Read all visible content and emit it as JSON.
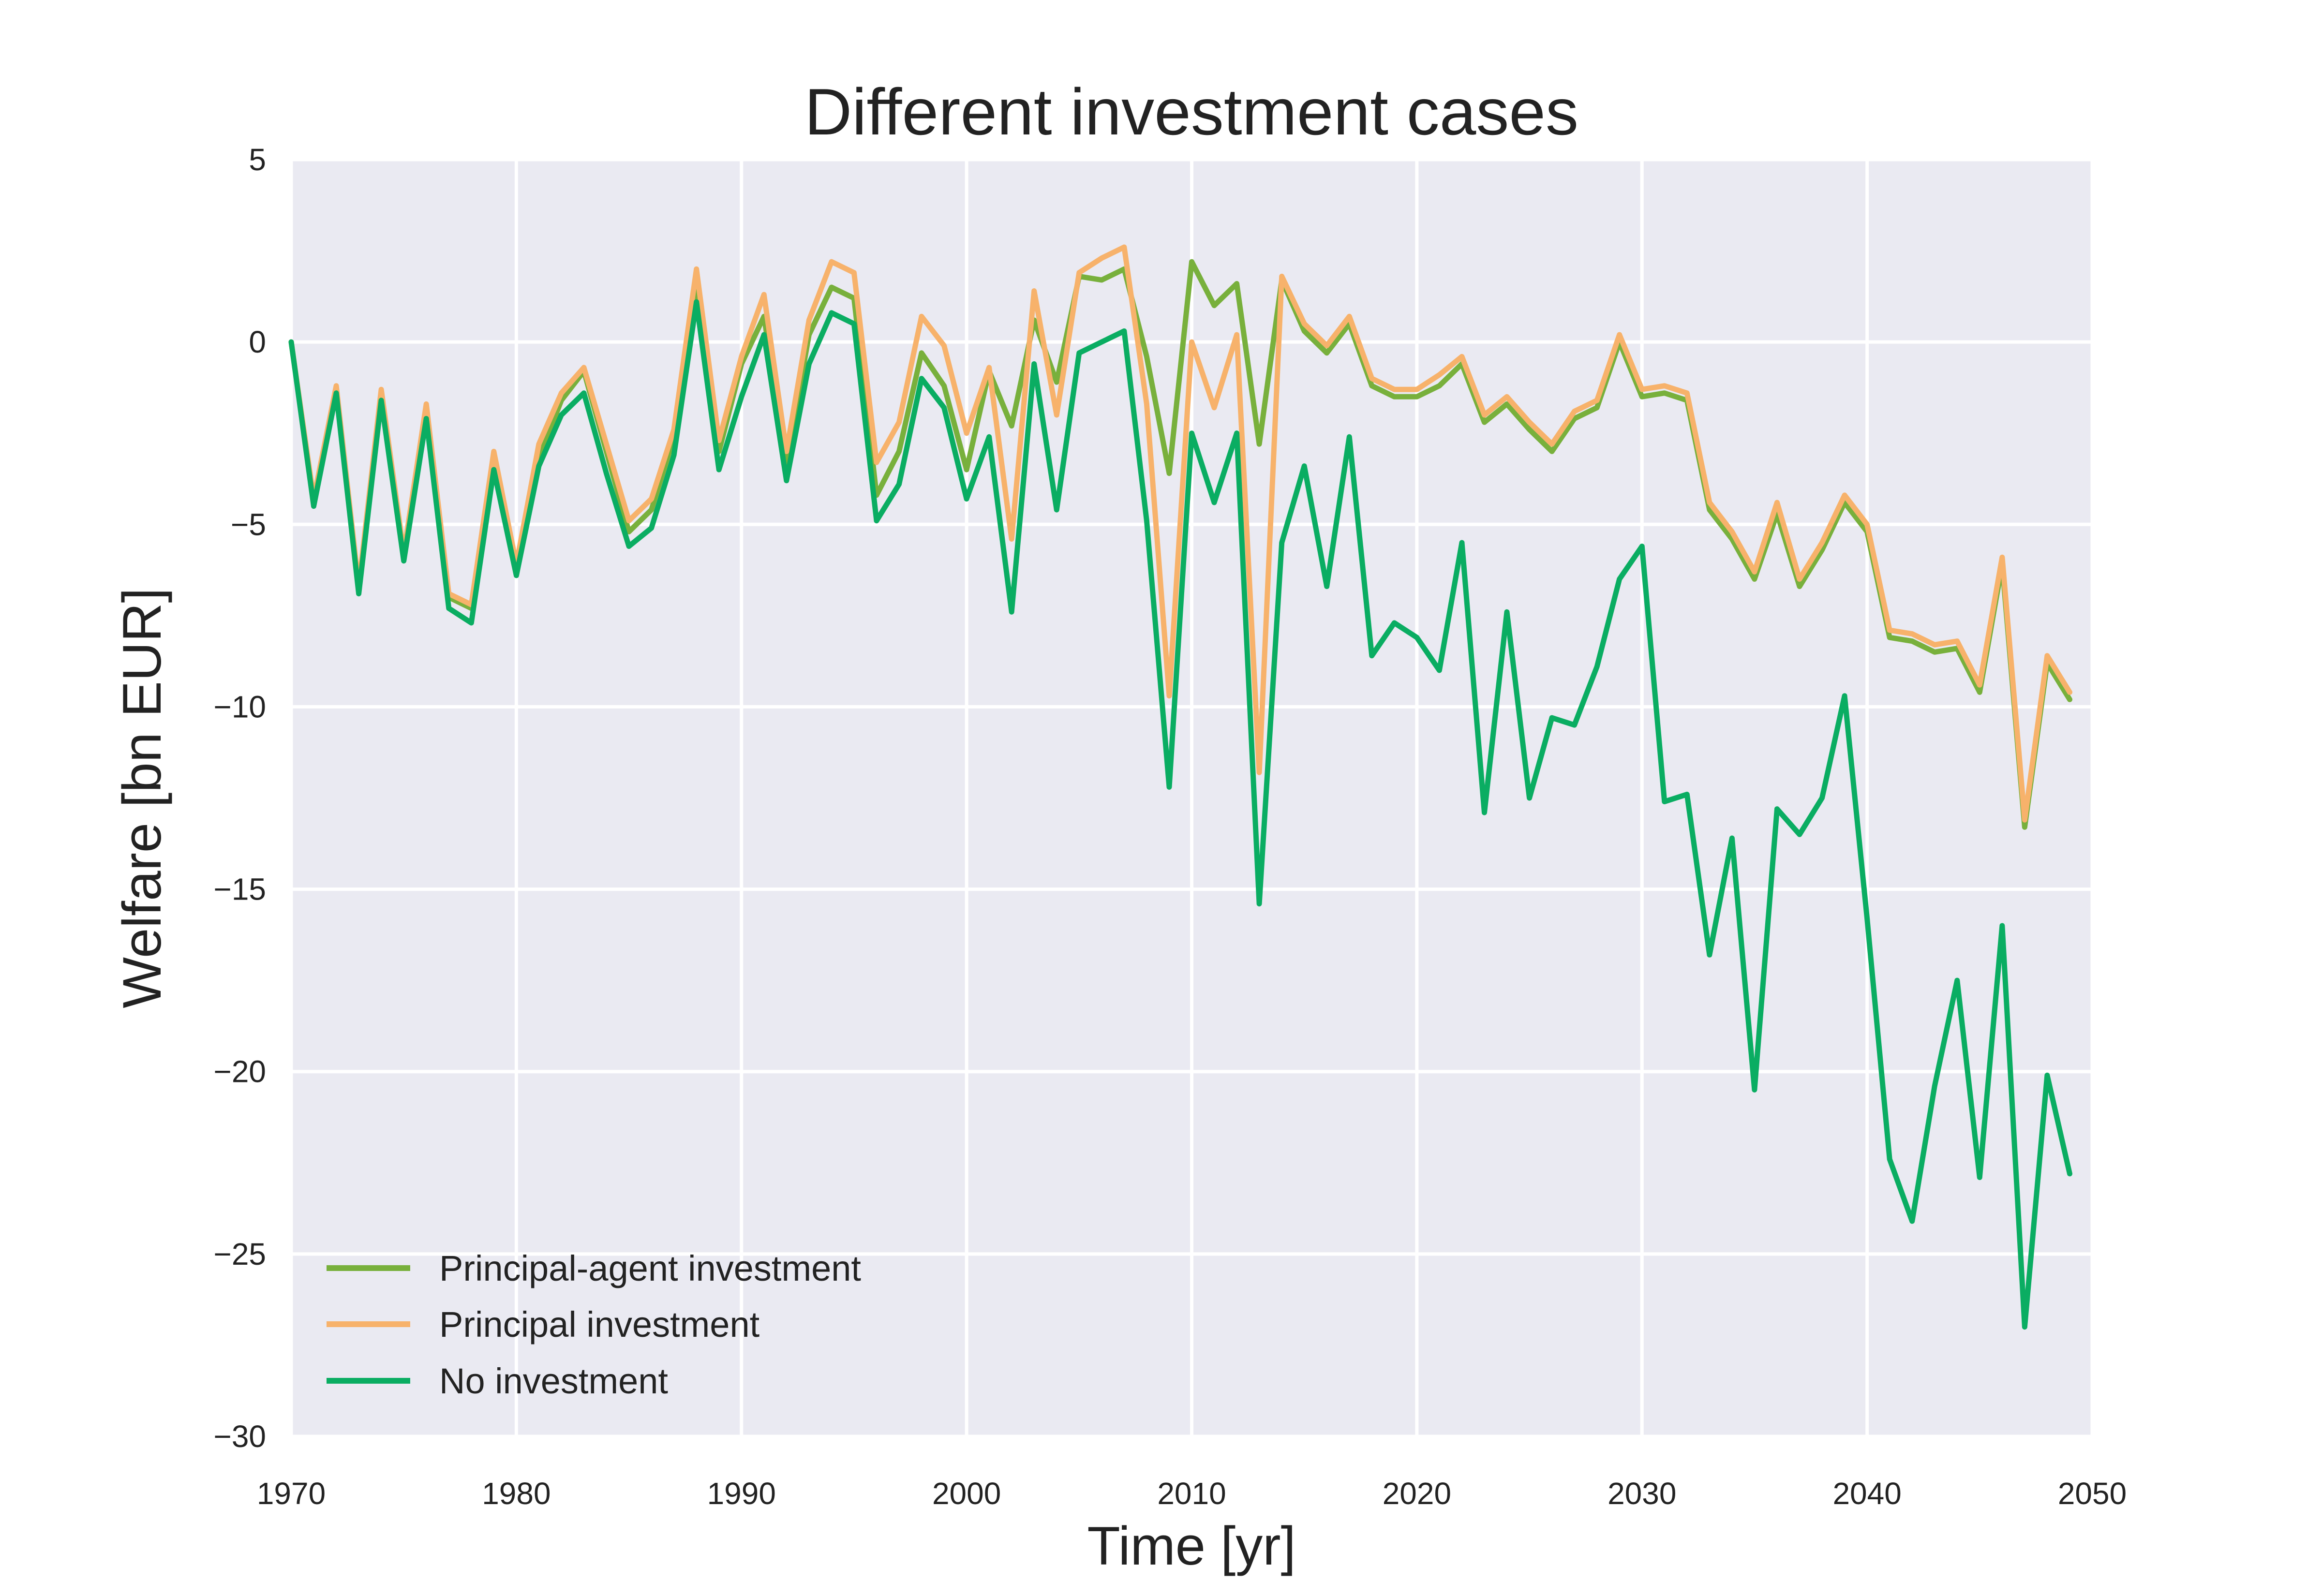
{
  "chart_data": {
    "type": "line",
    "title": "Different investment cases",
    "xlabel": "Time [yr]",
    "ylabel": "Welfare [bn EUR]",
    "xlim": [
      1970,
      2050
    ],
    "ylim": [
      -30,
      5
    ],
    "xticks": [
      1970,
      1980,
      1990,
      2000,
      2010,
      2020,
      2030,
      2040,
      2050
    ],
    "yticks": [
      5,
      0,
      -5,
      -10,
      -15,
      -20,
      -25,
      -30
    ],
    "xtick_labels": [
      "1970",
      "1980",
      "1990",
      "2000",
      "2010",
      "2020",
      "2030",
      "2040",
      "2050"
    ],
    "ytick_labels": [
      "5",
      "0",
      "−5",
      "−10",
      "−15",
      "−20",
      "−25",
      "−30"
    ],
    "grid": true,
    "legend_position": "lower-left",
    "x": [
      1970,
      1971,
      1972,
      1973,
      1974,
      1975,
      1976,
      1977,
      1978,
      1979,
      1980,
      1981,
      1982,
      1983,
      1984,
      1985,
      1986,
      1987,
      1988,
      1989,
      1990,
      1991,
      1992,
      1993,
      1994,
      1995,
      1996,
      1997,
      1998,
      1999,
      2000,
      2001,
      2002,
      2003,
      2004,
      2005,
      2006,
      2007,
      2008,
      2009,
      2010,
      2011,
      2012,
      2013,
      2014,
      2015,
      2016,
      2017,
      2018,
      2019,
      2020,
      2021,
      2022,
      2023,
      2024,
      2025,
      2026,
      2027,
      2028,
      2029,
      2030,
      2031,
      2032,
      2033,
      2034,
      2035,
      2036,
      2037,
      2038,
      2039,
      2040,
      2041,
      2042,
      2043,
      2044,
      2045,
      2046,
      2047,
      2048,
      2049
    ],
    "series": [
      {
        "name": "Principal-agent investment",
        "color": "#78b03c",
        "values": [
          0,
          -4.4,
          -1.3,
          -6.8,
          -1.5,
          -5.9,
          -2.0,
          -7.0,
          -7.3,
          -3.3,
          -6.2,
          -3.2,
          -1.6,
          -0.8,
          -3.0,
          -5.2,
          -4.6,
          -2.6,
          1.6,
          -3.0,
          -0.6,
          0.7,
          -3.3,
          0.2,
          1.5,
          1.2,
          -4.2,
          -3.0,
          -0.3,
          -1.2,
          -3.5,
          -0.8,
          -2.3,
          0.6,
          -1.1,
          1.8,
          1.7,
          2.0,
          -0.4,
          -3.6,
          2.2,
          1.0,
          1.6,
          -2.8,
          1.7,
          0.3,
          -0.3,
          0.5,
          -1.2,
          -1.5,
          -1.5,
          -1.2,
          -0.6,
          -2.2,
          -1.7,
          -2.4,
          -3.0,
          -2.1,
          -1.8,
          0.0,
          -1.5,
          -1.4,
          -1.6,
          -4.6,
          -5.4,
          -6.5,
          -4.7,
          -6.7,
          -5.7,
          -4.4,
          -5.2,
          -8.1,
          -8.2,
          -8.5,
          -8.4,
          -9.6,
          -6.1,
          -13.3,
          -8.8,
          -9.8
        ]
      },
      {
        "name": "Principal investment",
        "color": "#f7b26b",
        "values": [
          0,
          -4.3,
          -1.2,
          -6.7,
          -1.3,
          -5.8,
          -1.7,
          -6.9,
          -7.2,
          -3.0,
          -6.1,
          -2.8,
          -1.4,
          -0.7,
          -2.8,
          -4.9,
          -4.3,
          -2.4,
          2.0,
          -2.7,
          -0.4,
          1.3,
          -3.0,
          0.6,
          2.2,
          1.9,
          -3.3,
          -2.2,
          0.7,
          -0.1,
          -2.5,
          -0.7,
          -5.4,
          1.4,
          -2.0,
          1.9,
          2.3,
          2.6,
          -1.7,
          -9.7,
          0.0,
          -1.8,
          0.2,
          -11.8,
          1.8,
          0.5,
          -0.1,
          0.7,
          -1.0,
          -1.3,
          -1.3,
          -0.9,
          -0.4,
          -2.0,
          -1.5,
          -2.2,
          -2.8,
          -1.9,
          -1.6,
          0.2,
          -1.3,
          -1.2,
          -1.4,
          -4.4,
          -5.2,
          -6.3,
          -4.4,
          -6.5,
          -5.5,
          -4.2,
          -5.0,
          -7.9,
          -8.0,
          -8.3,
          -8.2,
          -9.4,
          -5.9,
          -13.1,
          -8.6,
          -9.6
        ]
      },
      {
        "name": "No investment",
        "color": "#0aad62",
        "values": [
          0,
          -4.5,
          -1.4,
          -6.9,
          -1.6,
          -6.0,
          -2.1,
          -7.3,
          -7.7,
          -3.5,
          -6.4,
          -3.4,
          -2.0,
          -1.4,
          -3.6,
          -5.6,
          -5.1,
          -3.1,
          1.1,
          -3.5,
          -1.5,
          0.2,
          -3.8,
          -0.6,
          0.8,
          0.5,
          -4.9,
          -3.9,
          -1.0,
          -1.8,
          -4.3,
          -2.6,
          -7.4,
          -0.6,
          -4.6,
          -0.3,
          0.0,
          0.3,
          -4.9,
          -12.2,
          -2.5,
          -4.4,
          -2.5,
          -15.4,
          -5.5,
          -3.4,
          -6.7,
          -2.6,
          -8.6,
          -7.7,
          -8.1,
          -9.0,
          -5.5,
          -12.9,
          -7.4,
          -12.5,
          -10.3,
          -10.5,
          -8.9,
          -6.5,
          -5.6,
          -12.6,
          -12.4,
          -16.8,
          -13.6,
          -20.5,
          -12.8,
          -13.5,
          -12.5,
          -9.7,
          -15.8,
          -22.4,
          -24.1,
          -20.4,
          -17.5,
          -22.9,
          -16.0,
          -27.0,
          -20.1,
          -22.8
        ]
      }
    ]
  }
}
